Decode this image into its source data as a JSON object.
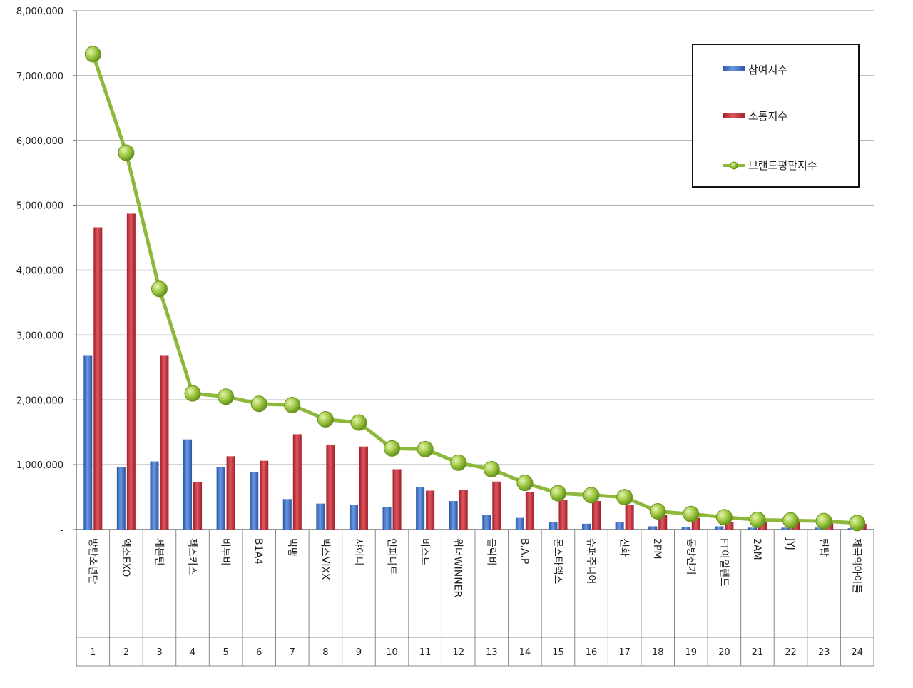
{
  "chart_data": {
    "type": "bar",
    "title": "",
    "xlabel": "",
    "ylabel": "",
    "ylim": [
      0,
      8000000
    ],
    "y_ticks": [
      "-",
      "1,000,000",
      "2,000,000",
      "3,000,000",
      "4,000,000",
      "5,000,000",
      "6,000,000",
      "7,000,000",
      "8,000,000"
    ],
    "grid": true,
    "legend_position": "top-right",
    "categories": [
      "방탄소년단",
      "엑소EXO",
      "세븐틴",
      "젝스키스",
      "비투비",
      "B1A4",
      "빅뱅",
      "빅스VIXX",
      "샤이니",
      "인피니트",
      "비스트",
      "위너WINNER",
      "블락비",
      "B.A.P",
      "몬스타엑스",
      "슈퍼주니어",
      "신화",
      "2PM",
      "동방신기",
      "FT아일랜드",
      "2AM",
      "JYJ",
      "틴탑",
      "제국의아이들"
    ],
    "ranks": [
      "1",
      "2",
      "3",
      "4",
      "5",
      "6",
      "7",
      "8",
      "9",
      "10",
      "11",
      "12",
      "13",
      "14",
      "15",
      "16",
      "17",
      "18",
      "19",
      "20",
      "21",
      "22",
      "23",
      "24"
    ],
    "series": [
      {
        "name": "참여지수",
        "type": "bar",
        "color": "#3b6fc6",
        "values": [
          2680000,
          960000,
          1050000,
          1390000,
          960000,
          890000,
          470000,
          400000,
          380000,
          350000,
          660000,
          440000,
          220000,
          180000,
          110000,
          90000,
          120000,
          50000,
          40000,
          50000,
          30000,
          30000,
          30000,
          20000
        ]
      },
      {
        "name": "소통지수",
        "type": "bar",
        "color": "#c0303a",
        "values": [
          4660000,
          4870000,
          2680000,
          730000,
          1130000,
          1060000,
          1470000,
          1310000,
          1280000,
          930000,
          600000,
          610000,
          740000,
          580000,
          460000,
          440000,
          380000,
          230000,
          180000,
          120000,
          110000,
          110000,
          100000,
          90000
        ]
      },
      {
        "name": "브랜드평판지수",
        "type": "line",
        "color": "#8db83b",
        "marker_color": "#9bc53d",
        "values": [
          7330000,
          5810000,
          3710000,
          2100000,
          2050000,
          1940000,
          1920000,
          1700000,
          1650000,
          1250000,
          1240000,
          1030000,
          930000,
          720000,
          560000,
          530000,
          500000,
          280000,
          240000,
          190000,
          150000,
          140000,
          130000,
          100000
        ]
      }
    ]
  }
}
